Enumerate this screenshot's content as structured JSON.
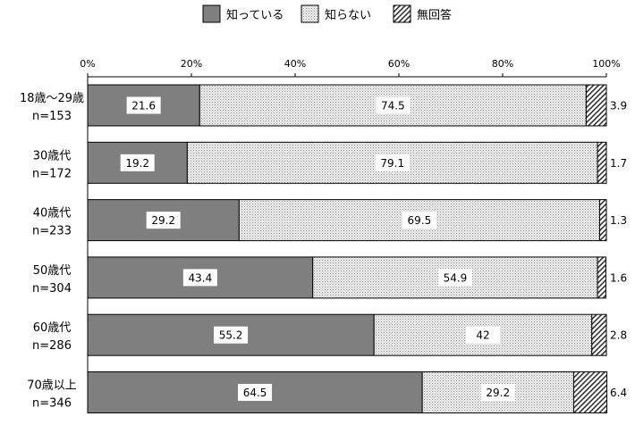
{
  "chart_data": {
    "type": "bar",
    "orientation": "horizontal",
    "stacked": "percent",
    "legend": {
      "position": "top",
      "entries": [
        {
          "label": "知っている",
          "pattern": "solid-gray"
        },
        {
          "label": "知らない",
          "pattern": "dots"
        },
        {
          "label": "無回答",
          "pattern": "hatch"
        }
      ]
    },
    "xaxis": {
      "ticks": [
        "0%",
        "20%",
        "40%",
        "60%",
        "80%",
        "100%"
      ],
      "tick_values": [
        0,
        20,
        40,
        60,
        80,
        100
      ],
      "range": [
        0,
        100
      ],
      "position": "top"
    },
    "categories": [
      {
        "line1": "18歳～29歳",
        "line2": "n=153"
      },
      {
        "line1": "30歳代",
        "line2": "n=172"
      },
      {
        "line1": "40歳代",
        "line2": "n=233"
      },
      {
        "line1": "50歳代",
        "line2": "n=304"
      },
      {
        "line1": "60歳代",
        "line2": "n=286"
      },
      {
        "line1": "70歳以上",
        "line2": "n=346"
      }
    ],
    "series": [
      {
        "name": "知っている",
        "color": "#7f7f7f",
        "values": [
          21.6,
          19.2,
          29.2,
          43.4,
          55.2,
          64.5
        ],
        "labels": [
          "21.6",
          "19.2",
          "29.2",
          "43.4",
          "55.2",
          "64.5"
        ]
      },
      {
        "name": "知らない",
        "color": "#e6e6e6",
        "values": [
          74.5,
          79.1,
          69.5,
          54.9,
          42,
          29.2
        ],
        "labels": [
          "74.5",
          "79.1",
          "69.5",
          "54.9",
          "42",
          "29.2"
        ]
      },
      {
        "name": "無回答",
        "color": "#555555",
        "values": [
          3.9,
          1.7,
          1.3,
          1.6,
          2.8,
          6.4
        ],
        "labels": [
          "3.9",
          "1.7",
          "1.3",
          "1.6",
          "2.8",
          "6.4"
        ]
      }
    ],
    "grid": false
  }
}
